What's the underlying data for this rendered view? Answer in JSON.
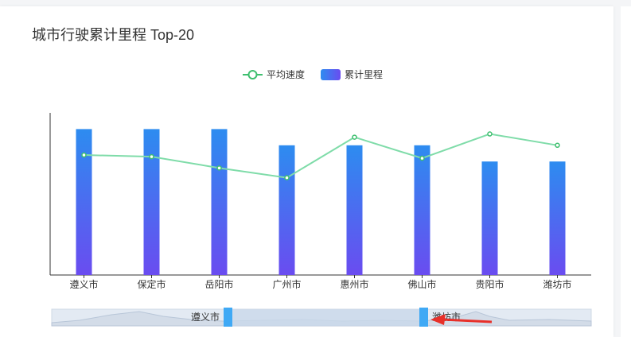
{
  "title": "城市行驶累计里程 Top-20",
  "legend": {
    "line_label": "平均速度",
    "bar_label": "累计里程"
  },
  "colors": {
    "bar_top": "#2d8cf0",
    "bar_bottom": "#6a4cf0",
    "line": "#7fdca9",
    "line_point": "#3fbf6f",
    "axis": "#333333",
    "zoom_bg": "#e3eaf3",
    "zoom_selected": "#c9d8ea",
    "zoom_handle": "#3fa9f5",
    "arrow": "#e8302a"
  },
  "chart_data": {
    "type": "bar",
    "categories": [
      "遵义市",
      "保定市",
      "岳阳市",
      "广州市",
      "惠州市",
      "佛山市",
      "贵阳市",
      "潍坊市"
    ],
    "series": [
      {
        "name": "累计里程",
        "type": "bar",
        "values": [
          9,
          9,
          9,
          8,
          8,
          8,
          7,
          7
        ]
      },
      {
        "name": "平均速度",
        "type": "line",
        "values": [
          7.4,
          7.3,
          6.6,
          6.0,
          8.5,
          7.2,
          8.7,
          8.0
        ]
      }
    ],
    "ylim": [
      0,
      10
    ],
    "grid": false,
    "legend_position": "top-center",
    "zoom": {
      "start_label": "遵义市",
      "end_label": "潍坊市",
      "start_fraction": 0.32,
      "end_fraction": 0.69
    }
  }
}
